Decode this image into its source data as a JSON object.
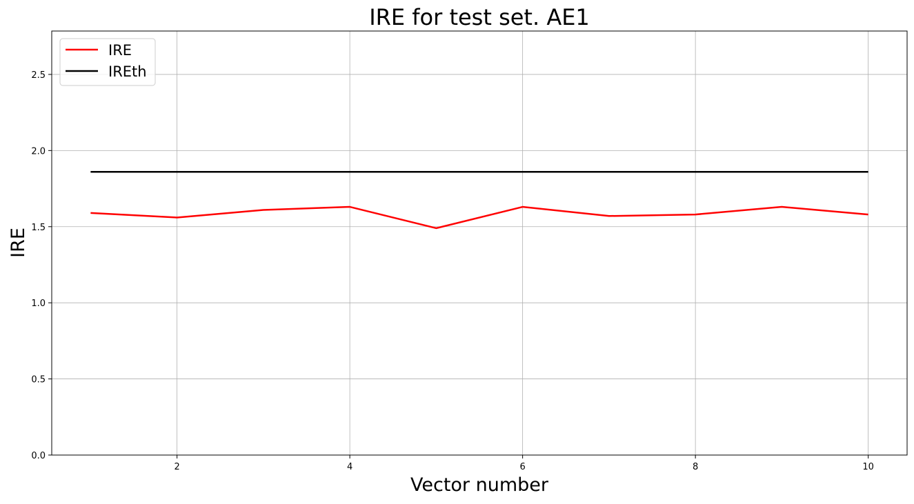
{
  "chart_data": {
    "type": "line",
    "title": "IRE for test set. AE1",
    "xlabel": "Vector number",
    "ylabel": "IRE",
    "xlim": [
      0.55,
      10.45
    ],
    "ylim": [
      0,
      2.785
    ],
    "xticks": [
      2,
      4,
      6,
      8,
      10
    ],
    "xtick_labels": [
      "2",
      "4",
      "6",
      "8",
      "10"
    ],
    "yticks": [
      0,
      0.5,
      1.0,
      1.5,
      2.0,
      2.5
    ],
    "ytick_labels": [
      "0.0",
      "0.5",
      "1.0",
      "1.5",
      "2.0",
      "2.5"
    ],
    "grid": true,
    "legend_position": "top-left",
    "x": [
      1,
      2,
      3,
      4,
      5,
      6,
      7,
      8,
      9,
      10
    ],
    "series": [
      {
        "name": "IRE",
        "color": "#ff0000",
        "values": [
          1.59,
          1.56,
          1.61,
          1.63,
          1.49,
          1.63,
          1.57,
          1.58,
          1.63,
          1.58
        ]
      },
      {
        "name": "IREth",
        "color": "#000000",
        "values": [
          1.86,
          1.86,
          1.86,
          1.86,
          1.86,
          1.86,
          1.86,
          1.86,
          1.86,
          1.86
        ]
      }
    ]
  }
}
